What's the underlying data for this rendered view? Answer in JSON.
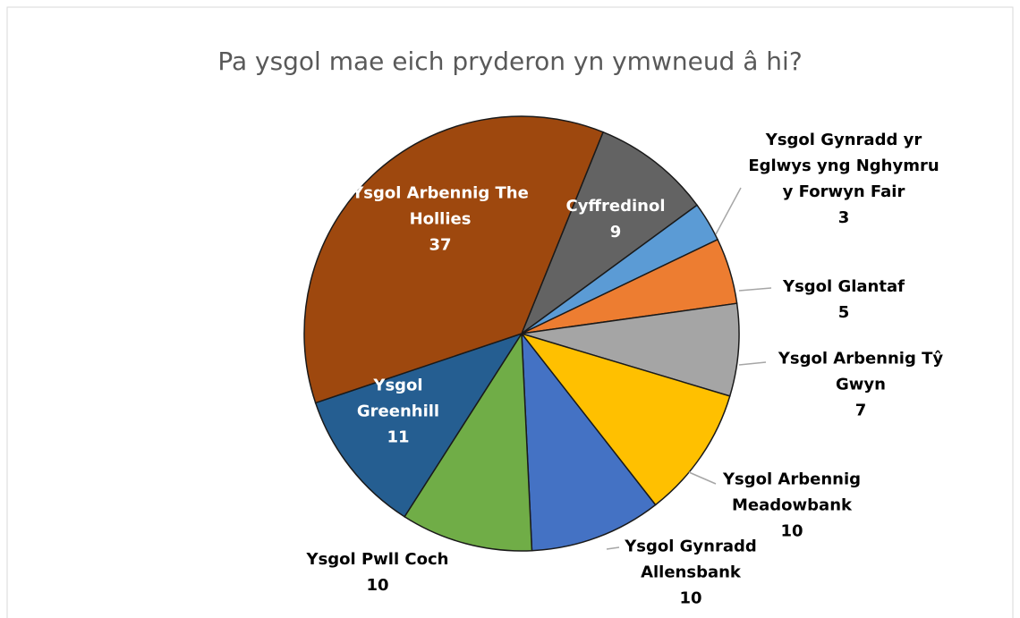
{
  "chart_data": {
    "type": "pie",
    "title": "Pa ysgol mae eich pryderon yn ymwneud â hi?",
    "categories": [
      "Cyffredinol",
      "Ysgol Gynradd yr Eglwys yng Nghymru y Forwyn Fair",
      "Ysgol Glantaf",
      "Ysgol Arbennig Tŷ Gwyn",
      "Ysgol Arbennig Meadowbank",
      "Ysgol Gynradd Allensbank",
      "Ysgol Pwll Coch",
      "Ysgol Greenhill",
      "Ysgol Arbennig The Hollies"
    ],
    "values": [
      9,
      3,
      5,
      7,
      10,
      10,
      10,
      11,
      37
    ],
    "colors": [
      "#636363",
      "#5b9bd5",
      "#ed7d31",
      "#a5a5a5",
      "#ffc000",
      "#4472c4",
      "#70ad47",
      "#255e91",
      "#9e480e"
    ]
  }
}
